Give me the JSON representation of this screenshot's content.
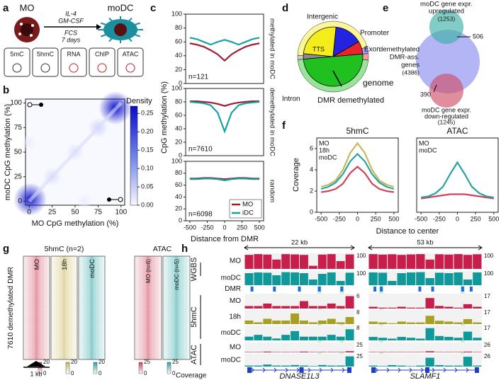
{
  "panel_labels": [
    "a",
    "b",
    "c",
    "d",
    "e",
    "f",
    "g",
    "h"
  ],
  "panel_a": {
    "source": "MO",
    "target": "moDC",
    "treatment": [
      "IL-4",
      "GM-CSF",
      "FCS",
      "7 days"
    ],
    "assays": [
      "5mC",
      "5hmC",
      "RNA",
      "ChIP",
      "ATAC"
    ]
  },
  "chart_data": [
    {
      "type": "heatmap2d",
      "xlabel": "MO CpG methylation (%)",
      "ylabel": "moDC CpG methylation (%)",
      "xlim": [
        -4,
        104
      ],
      "ylim": [
        -4,
        104
      ],
      "xticks": [
        0,
        25,
        50,
        75,
        100
      ],
      "yticks": [
        0,
        25,
        50,
        75,
        100
      ],
      "colorbar_label": "Density",
      "clim": [
        0,
        0.27
      ],
      "cticks": [
        {
          "value": 0,
          "label": "0.00"
        },
        {
          "value": 0.05,
          "label": "0.05"
        },
        {
          "value": 0.1,
          "label": "0.10"
        },
        {
          "value": 0.15,
          "label": "0.15"
        },
        {
          "value": 0.2,
          "label": "0.20"
        },
        {
          "value": 0.25,
          "label": "0.25"
        }
      ],
      "hotspots": [
        {
          "x": 1,
          "y": 2,
          "value": 0.25
        },
        {
          "x": 94,
          "y": 95,
          "value": 0.26
        },
        {
          "x": 25,
          "y": 25,
          "value": 0.03
        },
        {
          "x": 50,
          "y": 50,
          "value": 0.025
        },
        {
          "x": 75,
          "y": 75,
          "value": 0.04
        },
        {
          "x": 0,
          "y": 60,
          "value": 0.012
        },
        {
          "x": 60,
          "y": 0,
          "value": 0.012
        }
      ]
    },
    {
      "type": "line",
      "annotation": "n=121",
      "side_label": "methylated in moDC",
      "x": [
        -500,
        -400,
        -300,
        -200,
        -100,
        0,
        100,
        200,
        300,
        400,
        500
      ],
      "xlim": [
        -560,
        560
      ],
      "ylim": [
        0,
        100
      ],
      "yticks": [
        0,
        20,
        40,
        60,
        80,
        100
      ],
      "series": [
        {
          "color": "#9e1b32",
          "values": [
            58,
            56,
            53,
            48,
            42,
            33,
            42,
            48,
            53,
            56,
            58
          ]
        },
        {
          "color": "#16a3a3",
          "values": [
            66,
            64,
            60,
            56,
            60,
            63,
            60,
            56,
            60,
            64,
            66
          ]
        }
      ]
    },
    {
      "type": "line",
      "annotation": "n=7610",
      "side_label": "demethylated in moDC",
      "ylabel": "CpG methylation (%)",
      "x": [
        -500,
        -400,
        -300,
        -200,
        -100,
        0,
        100,
        200,
        300,
        400,
        500
      ],
      "xlim": [
        -560,
        560
      ],
      "ylim": [
        0,
        100
      ],
      "yticks": [
        0,
        20,
        40,
        60,
        80,
        100
      ],
      "series": [
        {
          "color": "#9e1b32",
          "values": [
            81,
            81,
            80,
            79,
            77,
            74,
            77,
            79,
            80,
            81,
            81
          ]
        },
        {
          "color": "#16a3a3",
          "values": [
            80,
            79,
            78,
            75,
            64,
            36,
            64,
            75,
            78,
            79,
            80
          ]
        }
      ]
    },
    {
      "type": "line",
      "annotation": "n=6098",
      "side_label": "random",
      "xlabel": "Distance from DMR",
      "legend": "lower right",
      "x": [
        -500,
        -400,
        -300,
        -200,
        -100,
        0,
        100,
        200,
        300,
        400,
        500
      ],
      "xlim": [
        -560,
        560
      ],
      "xticks": [
        -500,
        -250,
        0,
        250,
        500
      ],
      "ylim": [
        0,
        100
      ],
      "yticks": [
        0,
        20,
        40,
        60,
        80,
        100
      ],
      "series": [
        {
          "name": "MO",
          "color": "#9e1b32",
          "values": [
            71,
            71,
            72,
            72,
            71,
            70,
            71,
            72,
            72,
            71,
            71
          ]
        },
        {
          "name": "iDC",
          "color": "#16a3a3",
          "values": [
            70,
            70,
            71,
            71,
            70,
            68,
            70,
            71,
            71,
            70,
            70
          ]
        }
      ]
    },
    {
      "type": "pie",
      "categories": [
        "TTS",
        "Intergenic",
        "Promoter",
        "Exon",
        "Intron"
      ],
      "colors": [
        "#8c8c8c",
        "#f5ec1c",
        "#2424e0",
        "#e8242c",
        "#1fc01f"
      ],
      "label_colors": [
        "#ffffff",
        "#b86a2c",
        "#2424e0",
        "#e8242c",
        "#1f9e1f"
      ],
      "series": [
        {
          "name": "DMR demethylated",
          "values": [
            3,
            25,
            15,
            7,
            50
          ]
        },
        {
          "name": "genome",
          "values": [
            2,
            45,
            3,
            3,
            47
          ]
        }
      ]
    },
    {
      "type": "line",
      "title": "5hmC",
      "xlabel": "Distance to center",
      "ylabel": "Coverage",
      "x": [
        -500,
        -400,
        -300,
        -200,
        -100,
        0,
        100,
        200,
        300,
        400,
        500
      ],
      "xlim": [
        -560,
        560
      ],
      "xticks": [
        -500,
        -250,
        0,
        250,
        500
      ],
      "ylim": [
        0,
        7
      ],
      "yticks": [
        0,
        2,
        4,
        6
      ],
      "series": [
        {
          "name": "MO",
          "color": "#d0435a",
          "values": [
            1.9,
            2.0,
            2.2,
            2.7,
            3.7,
            4.3,
            3.7,
            2.7,
            2.2,
            2.0,
            1.9
          ]
        },
        {
          "name": "18h",
          "color": "#c9b65a",
          "values": [
            2.4,
            2.6,
            3.0,
            4.0,
            5.6,
            6.5,
            5.6,
            4.0,
            3.0,
            2.6,
            2.4
          ]
        },
        {
          "name": "moDC",
          "color": "#2aa3a3",
          "values": [
            2.2,
            2.4,
            2.8,
            3.6,
            4.8,
            5.5,
            4.8,
            3.6,
            2.8,
            2.4,
            2.2
          ]
        }
      ]
    },
    {
      "type": "line",
      "title": "ATAC",
      "x": [
        -500,
        -400,
        -300,
        -200,
        -100,
        0,
        100,
        200,
        300,
        400,
        500
      ],
      "xlim": [
        -560,
        560
      ],
      "xticks": [
        -500,
        -250,
        0,
        250,
        500
      ],
      "ylim": [
        0,
        7
      ],
      "series": [
        {
          "name": "MO",
          "color": "#d0435a",
          "values": [
            1.3,
            1.4,
            1.5,
            1.6,
            1.7,
            1.7,
            1.7,
            1.6,
            1.5,
            1.4,
            1.3
          ]
        },
        {
          "name": "moDC",
          "color": "#2aa3a3",
          "values": [
            1.4,
            1.5,
            1.8,
            2.4,
            3.6,
            4.7,
            3.6,
            2.4,
            1.8,
            1.5,
            1.4
          ]
        }
      ]
    }
  ],
  "panel_e": {
    "sets": [
      {
        "lines": [
          "moDC gene expr.",
          "upregulated"
        ],
        "count": 1253,
        "count_label": "(1253)",
        "color": "#2aa39a"
      },
      {
        "lines": [
          "demethylated",
          "DMR-ass.",
          "genes"
        ],
        "count": 4386,
        "count_label": "(4386)",
        "color": "#3a3ad8"
      },
      {
        "lines": [
          "moDC gene expr.",
          "down-regulated"
        ],
        "count": 1245,
        "count_label": "(1245)",
        "color": "#b02040"
      }
    ],
    "overlaps": [
      506,
      390
    ]
  },
  "panel_g": {
    "ylabel": "7610 demethylated DMR",
    "scale_label": "1 kb",
    "colorbar_label": "Coverage",
    "groups": [
      {
        "title": "5hmC (n=2)",
        "columns": [
          "MO",
          "18h",
          "moDC"
        ],
        "colors": [
          "#d0435a",
          "#c9b65a",
          "#2aa3a3"
        ],
        "clim": [
          0,
          20
        ]
      },
      {
        "title": "ATAC",
        "columns": [
          "MO (n=6)",
          "moDC (n=5)"
        ],
        "colors": [
          "#d0435a",
          "#2aa3a3"
        ],
        "clim": [
          0,
          25
        ]
      }
    ]
  },
  "panel_h": {
    "group_labels": [
      "WGBS",
      "5hmC",
      "ATAC"
    ],
    "track_names": [
      "MO",
      "moDC",
      "DMR",
      "MO",
      "18h",
      "moDC",
      "MO",
      "moDC"
    ],
    "track_colors": [
      "#c81e4b",
      "#10999a",
      "#1a6fd8",
      "#c81e4b",
      "#a8a022",
      "#10999a",
      "#c81e4b",
      "#10999a"
    ],
    "loci": [
      {
        "gene": "DNASE1L3",
        "length": "22 kb",
        "length_kb": 22,
        "dmrs": [
          1.5,
          6,
          11,
          15,
          19.5
        ],
        "highlights": [
          15,
          19.5
        ],
        "tracks": [
          {
            "max": 100,
            "values": [
              90,
              95,
              92,
              60,
              95,
              93,
              90,
              20,
              92,
              95,
              50,
              93
            ]
          },
          {
            "max": 100,
            "values": [
              85,
              90,
              88,
              70,
              92,
              90,
              85,
              40,
              80,
              90,
              30,
              88
            ]
          },
          {
            "max": 6,
            "values": [
              1,
              1,
              2,
              1,
              1,
              1,
              3,
              1,
              1,
              2,
              1,
              5
            ]
          },
          {
            "max": 8,
            "values": [
              2,
              1,
              3,
              2,
              2,
              6,
              2,
              1,
              2,
              3,
              1,
              4
            ]
          },
          {
            "max": 8,
            "values": [
              2,
              3,
              2,
              1,
              3,
              5,
              2,
              2,
              2,
              3,
              2,
              6
            ]
          },
          {
            "max": 25,
            "values": [
              1,
              1,
              2,
              1,
              1,
              1,
              2,
              1,
              1,
              1,
              1,
              3
            ]
          },
          {
            "max": 25,
            "values": [
              2,
              2,
              4,
              2,
              2,
              3,
              2,
              1,
              3,
              2,
              2,
              20
            ]
          }
        ]
      },
      {
        "gene": "SLAMF1",
        "length": "53 kb",
        "length_kb": 53,
        "dmrs": [
          3,
          6,
          24,
          30,
          44,
          48
        ],
        "highlights": [
          6,
          44
        ],
        "tracks": [
          {
            "max": 100,
            "values": [
              95,
              92,
              94,
              90,
              93,
              95,
              60,
              94,
              92,
              95,
              90,
              94
            ]
          },
          {
            "max": 100,
            "values": [
              90,
              88,
              30,
              85,
              90,
              92,
              50,
              88,
              85,
              90,
              40,
              90
            ]
          },
          {
            "max": 17,
            "values": [
              2,
              1,
              1,
              2,
              1,
              1,
              12,
              3,
              2,
              1,
              5,
              2
            ]
          },
          {
            "max": 17,
            "values": [
              3,
              2,
              1,
              3,
              2,
              2,
              10,
              4,
              3,
              2,
              6,
              2
            ]
          },
          {
            "max": 17,
            "values": [
              4,
              3,
              2,
              4,
              3,
              2,
              14,
              5,
              4,
              3,
              10,
              3
            ]
          },
          {
            "max": 26,
            "values": [
              1,
              1,
              1,
              1,
              1,
              1,
              3,
              1,
              1,
              1,
              2,
              1
            ]
          },
          {
            "max": 26,
            "values": [
              2,
              1,
              3,
              2,
              1,
              2,
              18,
              3,
              2,
              2,
              20,
              2
            ]
          }
        ]
      }
    ]
  }
}
